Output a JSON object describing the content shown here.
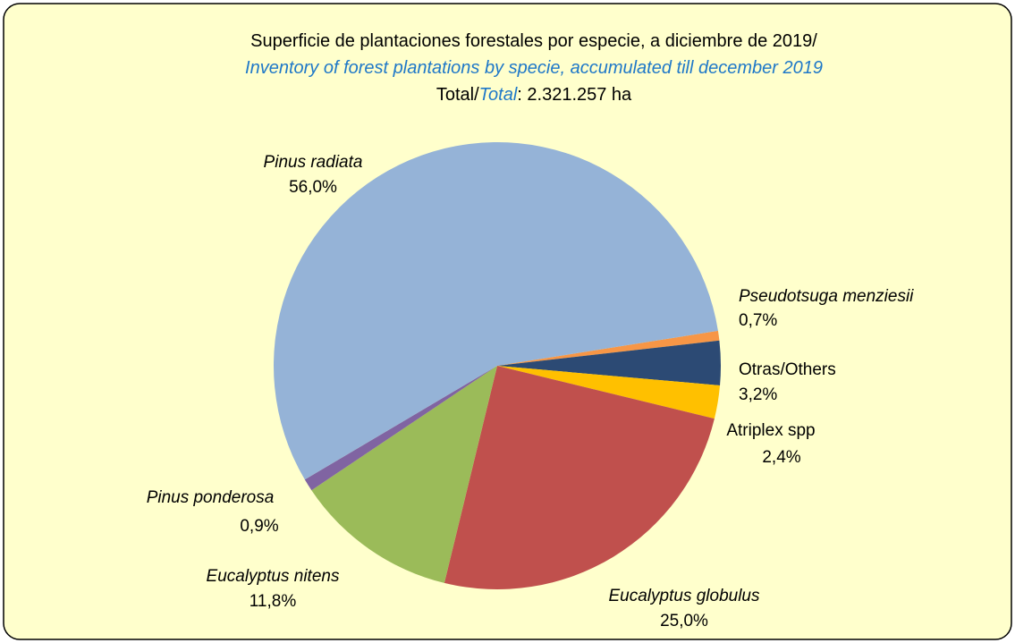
{
  "chart_data": {
    "type": "pie",
    "title": "Superficie de plantaciones forestales por especie, a diciembre de 2019/",
    "subtitle": "Inventory of forest plantations by specie, accumulated till december 2019",
    "total_prefix": "Total/",
    "total_label": "Total",
    "total_value": ": 2.321.257 ha",
    "categories": [
      "Pseudotsuga menziesii",
      "Otras/Others",
      "Atriplex spp",
      "Eucalyptus globulus",
      "Eucalyptus nitens",
      "Pinus ponderosa",
      "Pinus radiata"
    ],
    "values": [
      0.7,
      3.2,
      2.4,
      25.0,
      11.8,
      0.9,
      56.0
    ],
    "value_labels": [
      "0,7%",
      "3,2%",
      "2,4%",
      "25,0%",
      "11,8%",
      "0,9%",
      "56,0%"
    ],
    "colors": [
      "#f79646",
      "#2c4a74",
      "#ffc000",
      "#c0504d",
      "#9bbb59",
      "#8064a2",
      "#95b3d7"
    ]
  }
}
